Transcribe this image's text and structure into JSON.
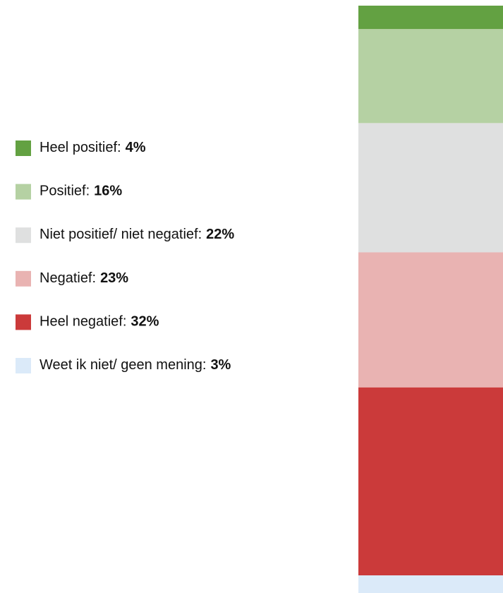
{
  "chart_data": {
    "type": "bar",
    "stacked": true,
    "orientation": "vertical",
    "ylim": [
      0,
      100
    ],
    "legend": "left",
    "series": [
      {
        "name": "Heel positief:",
        "color": "#63a142",
        "values": [
          4
        ],
        "value_labels": [
          "4%"
        ]
      },
      {
        "name": "Positief:",
        "color": "#b5d1a3",
        "values": [
          16
        ],
        "value_labels": [
          "16%"
        ]
      },
      {
        "name": "Niet positief/ niet negatief:",
        "color": "#dfe0e0",
        "values": [
          22
        ],
        "value_labels": [
          "22%"
        ]
      },
      {
        "name": "Negatief:",
        "color": "#e9b3b2",
        "values": [
          23
        ],
        "value_labels": [
          "23%"
        ]
      },
      {
        "name": "Heel negatief:",
        "color": "#cb3a3a",
        "values": [
          32
        ],
        "value_labels": [
          "32%"
        ]
      },
      {
        "name": "Weet ik niet/ geen mening:",
        "color": "#dbeaf9",
        "values": [
          3
        ],
        "value_labels": [
          "3%"
        ]
      }
    ]
  }
}
